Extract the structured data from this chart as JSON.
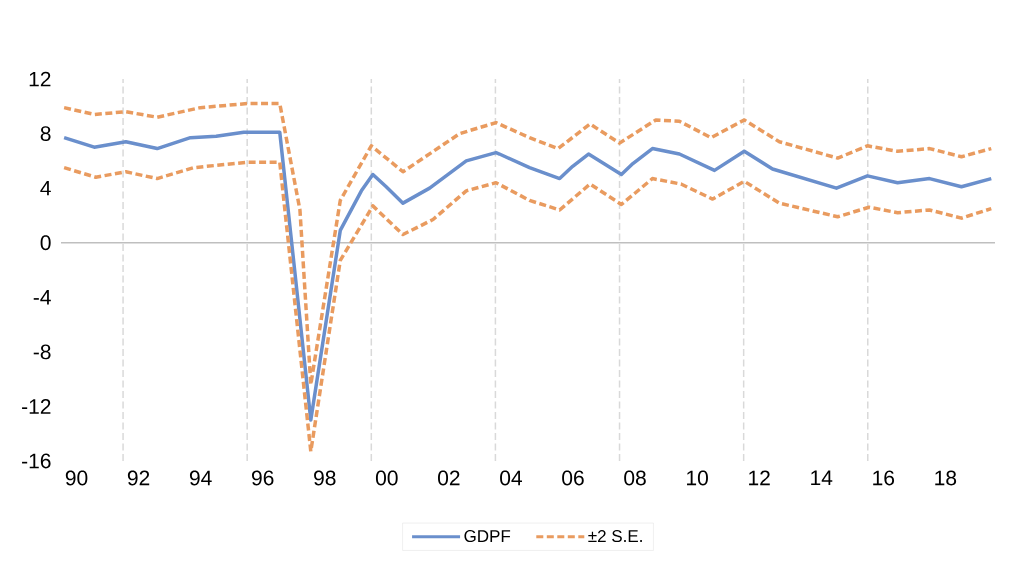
{
  "chart_data": {
    "type": "line",
    "xlim": [
      1989.5,
      2019.6
    ],
    "ylim": [
      -16,
      12
    ],
    "xticks": [
      {
        "value": 1990,
        "label": "90"
      },
      {
        "value": 1992,
        "label": "92"
      },
      {
        "value": 1994,
        "label": "94"
      },
      {
        "value": 1996,
        "label": "96"
      },
      {
        "value": 1998,
        "label": "98"
      },
      {
        "value": 2000,
        "label": "00"
      },
      {
        "value": 2002,
        "label": "02"
      },
      {
        "value": 2004,
        "label": "04"
      },
      {
        "value": 2006,
        "label": "06"
      },
      {
        "value": 2008,
        "label": "08"
      },
      {
        "value": 2010,
        "label": "10"
      },
      {
        "value": 2012,
        "label": "12"
      },
      {
        "value": 2014,
        "label": "14"
      },
      {
        "value": 2016,
        "label": "16"
      },
      {
        "value": 2018,
        "label": "18"
      }
    ],
    "yticks": [
      -16,
      -12,
      -8,
      -4,
      0,
      4,
      8,
      12
    ],
    "legend": "bottom",
    "ref_lines": [
      {
        "axis": "y",
        "value": 0,
        "color": "#bfbfbf",
        "line_style": "solid"
      },
      {
        "axis": "x",
        "value": 1991.5,
        "color": "#d9d9d9",
        "line_style": "dashed"
      },
      {
        "axis": "x",
        "value": 1995.5,
        "color": "#d9d9d9",
        "line_style": "dashed"
      },
      {
        "axis": "x",
        "value": 1999.5,
        "color": "#d9d9d9",
        "line_style": "dashed"
      },
      {
        "axis": "x",
        "value": 2003.5,
        "color": "#d9d9d9",
        "line_style": "dashed"
      },
      {
        "axis": "x",
        "value": 2007.5,
        "color": "#d9d9d9",
        "line_style": "dashed"
      },
      {
        "axis": "x",
        "value": 2011.5,
        "color": "#d9d9d9",
        "line_style": "dashed"
      },
      {
        "axis": "x",
        "value": 2015.5,
        "color": "#d9d9d9",
        "line_style": "dashed"
      }
    ],
    "series": [
      {
        "name": "GDPF",
        "color": "#6a8fcc",
        "line_style": "solid",
        "x": [
          1989.6,
          1990.57,
          1991.59,
          1992.6,
          1993.67,
          1994.5,
          1995.39,
          1996.55,
          1997.55,
          1998.5,
          1999.18,
          1999.55,
          1999.98,
          2000.52,
          2001.38,
          2002.56,
          2003.52,
          2003.63,
          2004.6,
          2005.57,
          2005.99,
          2006.5,
          2007.56,
          2007.93,
          2008.56,
          2009.43,
          2010.56,
          2011.52,
          2012.43,
          2014.49,
          2015.49,
          2016.46,
          2017.49,
          2018.52,
          2019.48
        ],
        "values": [
          7.7,
          7.0,
          7.4,
          6.9,
          7.7,
          7.8,
          8.1,
          8.1,
          -13.0,
          0.9,
          3.8,
          5.0,
          4.1,
          2.9,
          4.0,
          6.0,
          6.6,
          6.5,
          5.5,
          4.7,
          5.6,
          6.5,
          5.0,
          5.8,
          6.9,
          6.5,
          5.3,
          6.7,
          5.4,
          4.0,
          4.9,
          4.4,
          4.7,
          4.1,
          4.7
        ]
      },
      {
        "name": "±2 S.E.",
        "color": "#e99b5f",
        "line_style": "dashed",
        "x": [
          1989.6,
          1990.57,
          1991.59,
          1992.6,
          1993.99,
          1995.5,
          1996.55,
          1997.2,
          1997.55,
          1998.5,
          1999.5,
          2000.52,
          2002.35,
          2003.52,
          2004.6,
          2005.52,
          2006.55,
          2007.5,
          2008.67,
          2009.43,
          2010.45,
          2011.52,
          2012.65,
          2014.53,
          2015.49,
          2016.46,
          2017.49,
          2018.52,
          2019.48
        ],
        "values": [
          9.9,
          9.4,
          9.6,
          9.2,
          9.9,
          10.2,
          10.2,
          2.4,
          -10.4,
          3.1,
          7.1,
          5.2,
          8.0,
          8.8,
          7.7,
          6.9,
          8.7,
          7.3,
          9.0,
          8.9,
          7.7,
          9.0,
          7.4,
          6.2,
          7.1,
          6.7,
          6.9,
          6.3,
          6.9
        ]
      },
      {
        "color": "#e99b5f",
        "line_style": "dashed",
        "x": [
          1989.6,
          1990.62,
          1991.59,
          1992.6,
          1993.78,
          1995.5,
          1996.55,
          1997.55,
          1998.5,
          1999.55,
          2000.52,
          2001.49,
          2002.56,
          2003.52,
          2004.6,
          2005.57,
          2006.55,
          2007.56,
          2008.56,
          2009.48,
          2010.5,
          2011.52,
          2012.65,
          2014.53,
          2015.54,
          2016.46,
          2017.49,
          2018.52,
          2019.48
        ],
        "values": [
          5.5,
          4.8,
          5.2,
          4.7,
          5.5,
          5.9,
          5.9,
          -15.3,
          -1.3,
          2.7,
          0.6,
          1.7,
          3.8,
          4.4,
          3.1,
          2.4,
          4.3,
          2.8,
          4.7,
          4.3,
          3.2,
          4.5,
          2.9,
          1.9,
          2.6,
          2.2,
          2.4,
          1.8,
          2.5
        ]
      }
    ]
  }
}
